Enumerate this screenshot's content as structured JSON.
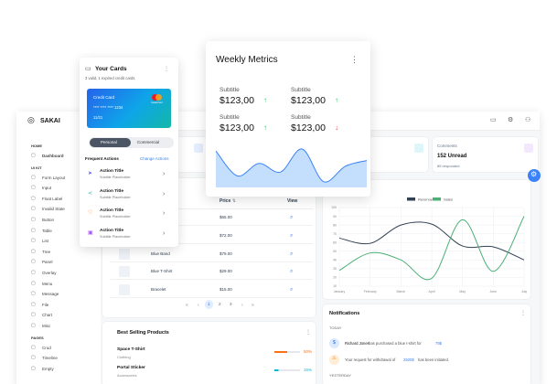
{
  "topbar": {
    "brand": "SAKAI"
  },
  "sidebar": {
    "sections": [
      {
        "title": "HOME",
        "items": [
          "Dashboard"
        ]
      },
      {
        "title": "UI KIT",
        "items": [
          "Form Layout",
          "Input",
          "Float Label",
          "Invalid State",
          "Button",
          "Table",
          "List",
          "Tree",
          "Panel",
          "Overlay",
          "Menu",
          "Message",
          "File",
          "Chart",
          "Misc"
        ]
      },
      {
        "title": "PAGES",
        "items": [
          "Crud",
          "Timeline",
          "Empty"
        ]
      }
    ]
  },
  "stats": {
    "comments": {
      "title": "Comments",
      "value": "152 Unread",
      "note": "85 responded"
    }
  },
  "products_table": {
    "headers": [
      "Price",
      "View"
    ],
    "rows": [
      {
        "price": "$65.00"
      },
      {
        "price": "$72.00"
      },
      {
        "name": "Blue Band",
        "price": "$79.00"
      },
      {
        "name": "Blue T-Shirt",
        "price": "$29.00"
      },
      {
        "name": "Bracelet",
        "price": "$15.00"
      }
    ],
    "pages": [
      "1",
      "2",
      "3"
    ]
  },
  "best_selling": {
    "title": "Best Selling Products",
    "items": [
      {
        "name": "Space T-Shirt",
        "category": "Clothing",
        "percent": 50,
        "value_label": "50%",
        "color": "#f97316"
      },
      {
        "name": "Portal Sticker",
        "category": "Accessories",
        "percent": 16,
        "value_label": "16%",
        "color": "#06b6d4"
      }
    ]
  },
  "sales_chart": {
    "type": "line",
    "categories": [
      "January",
      "February",
      "March",
      "April",
      "May",
      "June",
      "July"
    ],
    "series": [
      {
        "name": "Revenue",
        "color": "#334155",
        "values": [
          65,
          59,
          80,
          81,
          56,
          55,
          40
        ]
      },
      {
        "name": "Sales",
        "color": "#4caf76",
        "values": [
          28,
          48,
          40,
          19,
          86,
          27,
          90
        ]
      }
    ],
    "ylim": [
      10,
      100
    ],
    "yticks": [
      10,
      20,
      30,
      40,
      50,
      60,
      70,
      80,
      90,
      100
    ],
    "grid": true
  },
  "notifications": {
    "title": "Notifications",
    "today": "TODAY",
    "yesterday": "YESTERDAY",
    "items": [
      {
        "name": "Richard Jones",
        "text": "has purchased a blue t-shirt for",
        "amount": "79$"
      },
      {
        "text": "Your request for withdrawal of",
        "amount": "2500$",
        "suffix": "has been initiated."
      }
    ]
  },
  "cards_panel": {
    "title": "Your Cards",
    "subtitle": "3 valid, 1 expired credit cards",
    "card": {
      "label": "Credit Card",
      "number": "**** **** **** 1234",
      "expiry": "11/21",
      "brand": "mastercard"
    },
    "tabs": [
      "Personal",
      "Commercial"
    ],
    "actions_title": "Frequent Actions",
    "actions_link": "Change Actions",
    "actions": [
      {
        "title": "Action Title",
        "subtitle": "Subtitle Placeholder",
        "color": "#6366f1"
      },
      {
        "title": "Action Title",
        "subtitle": "Subtitle Placeholder",
        "color": "#14b8a6"
      },
      {
        "title": "Action Title",
        "subtitle": "Subtitle Placeholder",
        "color": "#f97316"
      },
      {
        "title": "Action Title",
        "subtitle": "Subtitle Placeholder",
        "color": "#a855f7"
      }
    ]
  },
  "weekly_metrics": {
    "title": "Weekly Metrics",
    "metrics": [
      {
        "label": "Subtitle",
        "value": "$123,00",
        "trend": "up"
      },
      {
        "label": "Subtitle",
        "value": "$123,00",
        "trend": "up"
      },
      {
        "label": "Subtitle",
        "value": "$123,00",
        "trend": "up"
      },
      {
        "label": "Subtitle",
        "value": "$123,00",
        "trend": "down"
      }
    ],
    "chart": {
      "values": [
        38,
        12,
        25,
        16,
        40,
        6,
        22,
        28
      ],
      "color": "#93c5fd"
    }
  }
}
